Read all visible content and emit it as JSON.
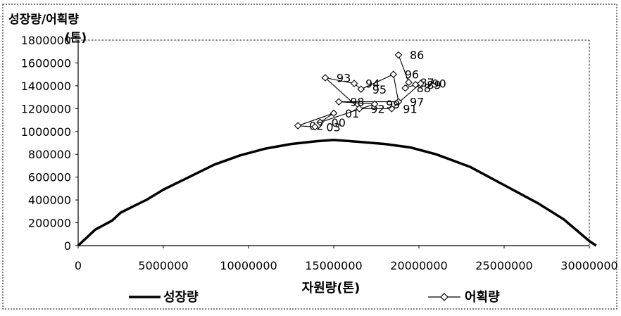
{
  "chart_data": {
    "type": "line",
    "title": "",
    "ylabel": "성장량/어획량\n(톤)",
    "xlabel": "자원량(톤)",
    "xlim": [
      0,
      30000000
    ],
    "ylim": [
      0,
      1800000
    ],
    "x_ticks": [
      "0",
      "5000000",
      "10000000",
      "15000000",
      "20000000",
      "25000000",
      "30000000"
    ],
    "y_ticks": [
      "0",
      "200000",
      "400000",
      "600000",
      "800000",
      "1000000",
      "1200000",
      "1400000",
      "1600000",
      "1800000"
    ],
    "grid": false,
    "legend_position": "bottom",
    "series": [
      {
        "name": "성장량",
        "style": "thick-line",
        "color": "#000000",
        "points": [
          [
            0,
            0
          ],
          [
            1000000,
            140000
          ],
          [
            2000000,
            220000
          ],
          [
            2500000,
            290000
          ],
          [
            4000000,
            400000
          ],
          [
            5000000,
            490000
          ],
          [
            6500000,
            600000
          ],
          [
            8000000,
            710000
          ],
          [
            9500000,
            790000
          ],
          [
            11000000,
            850000
          ],
          [
            12500000,
            890000
          ],
          [
            14000000,
            915000
          ],
          [
            15000000,
            925000
          ],
          [
            16000000,
            915000
          ],
          [
            18000000,
            890000
          ],
          [
            19500000,
            860000
          ],
          [
            21000000,
            800000
          ],
          [
            23000000,
            690000
          ],
          [
            25000000,
            530000
          ],
          [
            27000000,
            370000
          ],
          [
            28500000,
            230000
          ],
          [
            30000000,
            40000
          ],
          [
            30400000,
            0
          ]
        ]
      },
      {
        "name": "어획량",
        "style": "line-diamond",
        "color": "#000000",
        "points": [
          {
            "label": "86",
            "x": 18800000,
            "y": 1670000
          },
          {
            "label": "87",
            "x": 19400000,
            "y": 1430000
          },
          {
            "label": "88",
            "x": 19200000,
            "y": 1380000
          },
          {
            "label": "89",
            "x": 19800000,
            "y": 1410000
          },
          {
            "label": "90",
            "x": 20100000,
            "y": 1420000
          },
          {
            "label": "91",
            "x": 18400000,
            "y": 1200000
          },
          {
            "label": "92",
            "x": 16500000,
            "y": 1200000
          },
          {
            "label": "93",
            "x": 14500000,
            "y": 1470000
          },
          {
            "label": "94",
            "x": 16200000,
            "y": 1420000
          },
          {
            "label": "95",
            "x": 16600000,
            "y": 1370000
          },
          {
            "label": "96",
            "x": 18500000,
            "y": 1500000
          },
          {
            "label": "97",
            "x": 18800000,
            "y": 1260000
          },
          {
            "label": "98",
            "x": 15300000,
            "y": 1260000
          },
          {
            "label": "99",
            "x": 17400000,
            "y": 1240000
          },
          {
            "label": "00",
            "x": 14200000,
            "y": 1080000
          },
          {
            "label": "01",
            "x": 15000000,
            "y": 1160000
          },
          {
            "label": "02",
            "x": 12900000,
            "y": 1050000
          },
          {
            "label": "03",
            "x": 13900000,
            "y": 1040000
          }
        ]
      }
    ]
  }
}
